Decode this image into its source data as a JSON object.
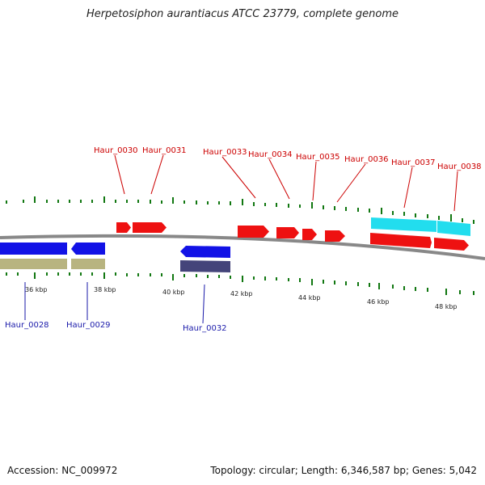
{
  "title": "Herpetosiphon aurantiacus ATCC 23779, complete genome",
  "accession": "Accession: NC_009972",
  "summary": "Topology: circular; Length: 6,346,587 bp; Genes: 5,042",
  "colors": {
    "forward_gene": "#ee1111",
    "reverse_gene": "#1212e6",
    "forward_feature": "#22ddee",
    "reverse_feature": "#44447a",
    "reverse_feature_tan": "#b8b480",
    "tick": "#117711",
    "backbone": "#888888",
    "label_forward": "#cc0000",
    "label_reverse": "#1a1aaa"
  },
  "scale_labels": [
    "36 kbp",
    "38 kbp",
    "40 kbp",
    "42 kbp",
    "44 kbp",
    "46 kbp",
    "48 kbp"
  ],
  "forward_labels": [
    "Haur_0030",
    "Haur_0031",
    "Haur_0033",
    "Haur_0034",
    "Haur_0035",
    "Haur_0036",
    "Haur_0037",
    "Haur_0038"
  ],
  "reverse_labels": [
    "Haur_0028",
    "Haur_0029",
    "Haur_0032"
  ]
}
